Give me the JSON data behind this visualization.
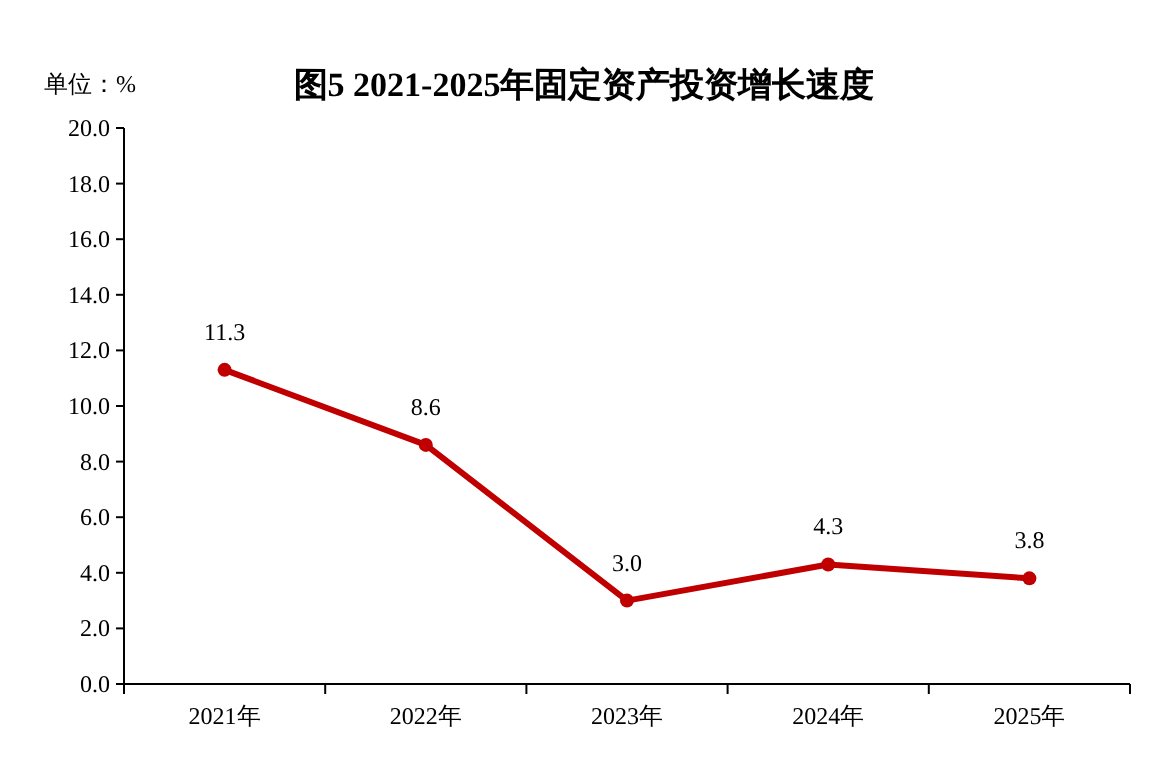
{
  "chart_data": {
    "type": "line",
    "title": "图5  2021-2025年固定资产投资增长速度",
    "ylabel": "单位：%",
    "categories": [
      "2021年",
      "2022年",
      "2023年",
      "2024年",
      "2025年"
    ],
    "series": [
      {
        "color": "#c00000",
        "values": [
          11.3,
          8.6,
          3.0,
          4.3,
          3.8
        ],
        "value_labels": [
          "11.3",
          "8.6",
          "3.0",
          "4.3",
          "3.8"
        ]
      }
    ],
    "ylim": [
      0,
      20
    ],
    "yticks": [
      {
        "value": 0,
        "label": "0.0"
      },
      {
        "value": 2,
        "label": "2.0"
      },
      {
        "value": 4,
        "label": "4.0"
      },
      {
        "value": 6,
        "label": "6.0"
      },
      {
        "value": 8,
        "label": "8.0"
      },
      {
        "value": 10,
        "label": "10.0"
      },
      {
        "value": 12,
        "label": "12.0"
      },
      {
        "value": 14,
        "label": "14.0"
      },
      {
        "value": 16,
        "label": "16.0"
      },
      {
        "value": 18,
        "label": "18.0"
      },
      {
        "value": 20,
        "label": "20.0"
      }
    ],
    "marker": "circle",
    "line_style": "solid",
    "grid": false
  }
}
